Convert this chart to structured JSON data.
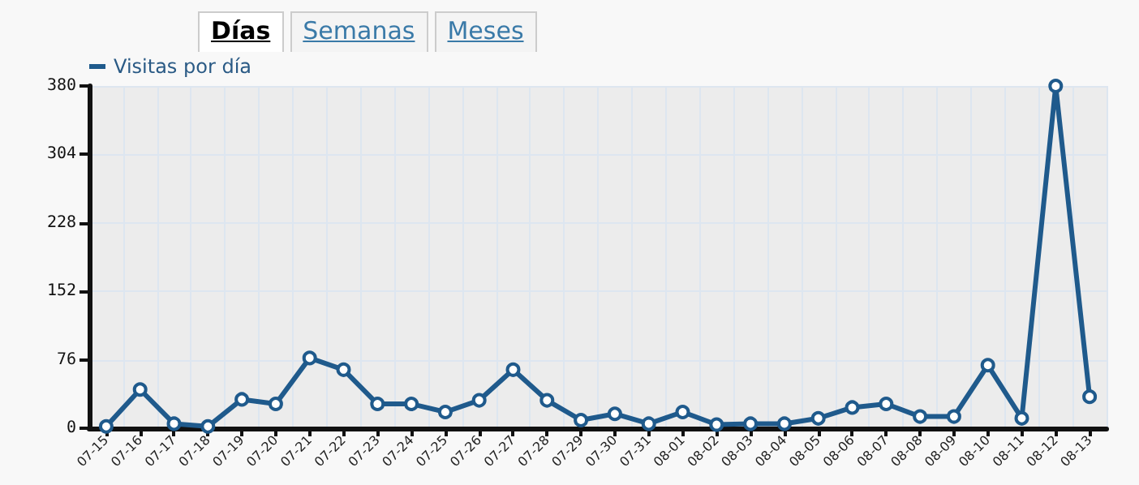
{
  "chart_data": {
    "type": "line",
    "annotations": [
      "Días",
      "Semanas",
      "Meses"
    ],
    "categories": [
      "07-15",
      "07-16",
      "07-17",
      "07-18",
      "07-19",
      "07-20",
      "07-21",
      "07-22",
      "07-23",
      "07-24",
      "07-25",
      "07-26",
      "07-27",
      "07-28",
      "07-29",
      "07-30",
      "07-31",
      "08-01",
      "08-02",
      "08-03",
      "08-04",
      "08-05",
      "08-06",
      "08-07",
      "08-08",
      "08-09",
      "08-10",
      "08-11",
      "08-12",
      "08-13"
    ],
    "series": [
      {
        "name": "Visitas por día",
        "color": "#1f5a8c",
        "values": [
          2,
          43,
          5,
          2,
          32,
          27,
          78,
          65,
          27,
          27,
          18,
          31,
          65,
          31,
          9,
          16,
          5,
          18,
          4,
          5,
          5,
          11,
          23,
          27,
          13,
          13,
          70,
          11,
          380,
          35
        ]
      }
    ],
    "ylim": [
      0,
      380
    ],
    "yticks": [
      0,
      76,
      152,
      228,
      304,
      380
    ],
    "grid": true,
    "legend": "top left",
    "marker": "circle",
    "line_style": "solid"
  }
}
